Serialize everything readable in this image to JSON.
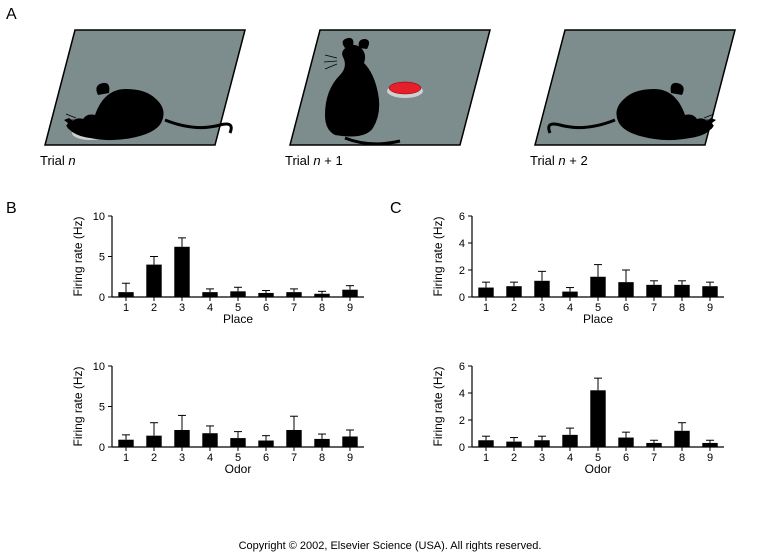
{
  "labels": {
    "A": "A",
    "B": "B",
    "C": "C"
  },
  "trials": [
    {
      "label_prefix": "Trial ",
      "label_n": "n",
      "label_suffix": "",
      "disc_color": "#e6202a"
    },
    {
      "label_prefix": "Trial ",
      "label_n": "n",
      "label_suffix": " + 1",
      "disc_color": "#e6202a"
    },
    {
      "label_prefix": "Trial ",
      "label_n": "n",
      "label_suffix": " + 2",
      "disc_color": "#1f9e3c"
    }
  ],
  "platform": {
    "fill": "#7d8c8c",
    "stroke": "#000000"
  },
  "rat_color": "#000000",
  "disc_rim": "#d0d0d0",
  "bar_color": "#000000",
  "axis_color": "#000000",
  "axis_label": "Firing rate (Hz)",
  "charts": {
    "B_place": {
      "xlabel": "Place",
      "ylim": [
        0,
        10
      ],
      "ytick_step": 5,
      "categories": [
        "1",
        "2",
        "3",
        "4",
        "5",
        "6",
        "7",
        "8",
        "9"
      ],
      "values": [
        0.6,
        4.0,
        6.2,
        0.6,
        0.7,
        0.5,
        0.6,
        0.4,
        0.9
      ],
      "errors": [
        1.1,
        1.0,
        1.1,
        0.4,
        0.5,
        0.3,
        0.4,
        0.3,
        0.5
      ]
    },
    "B_odor": {
      "xlabel": "Odor",
      "ylim": [
        0,
        10
      ],
      "ytick_step": 5,
      "categories": [
        "1",
        "2",
        "3",
        "4",
        "5",
        "6",
        "7",
        "8",
        "9"
      ],
      "values": [
        0.9,
        1.4,
        2.1,
        1.7,
        1.1,
        0.8,
        2.1,
        1.0,
        1.3
      ],
      "errors": [
        0.6,
        1.6,
        1.8,
        0.9,
        0.8,
        0.6,
        1.7,
        0.6,
        0.8
      ]
    },
    "C_place": {
      "xlabel": "Place",
      "ylim": [
        0,
        6
      ],
      "ytick_step": 2,
      "categories": [
        "1",
        "2",
        "3",
        "4",
        "5",
        "6",
        "7",
        "8",
        "9"
      ],
      "values": [
        0.7,
        0.8,
        1.2,
        0.4,
        1.5,
        1.1,
        0.9,
        0.9,
        0.8
      ],
      "errors": [
        0.4,
        0.3,
        0.7,
        0.3,
        0.9,
        0.9,
        0.3,
        0.3,
        0.3
      ]
    },
    "C_odor": {
      "xlabel": "Odor",
      "ylim": [
        0,
        6
      ],
      "ytick_step": 2,
      "categories": [
        "1",
        "2",
        "3",
        "4",
        "5",
        "6",
        "7",
        "8",
        "9"
      ],
      "values": [
        0.5,
        0.4,
        0.5,
        0.9,
        4.2,
        0.7,
        0.3,
        1.2,
        0.3
      ],
      "errors": [
        0.3,
        0.3,
        0.3,
        0.5,
        0.9,
        0.4,
        0.2,
        0.6,
        0.2
      ]
    }
  },
  "copyright": "Copyright © 2002, Elsevier Science (USA). All rights reserved."
}
